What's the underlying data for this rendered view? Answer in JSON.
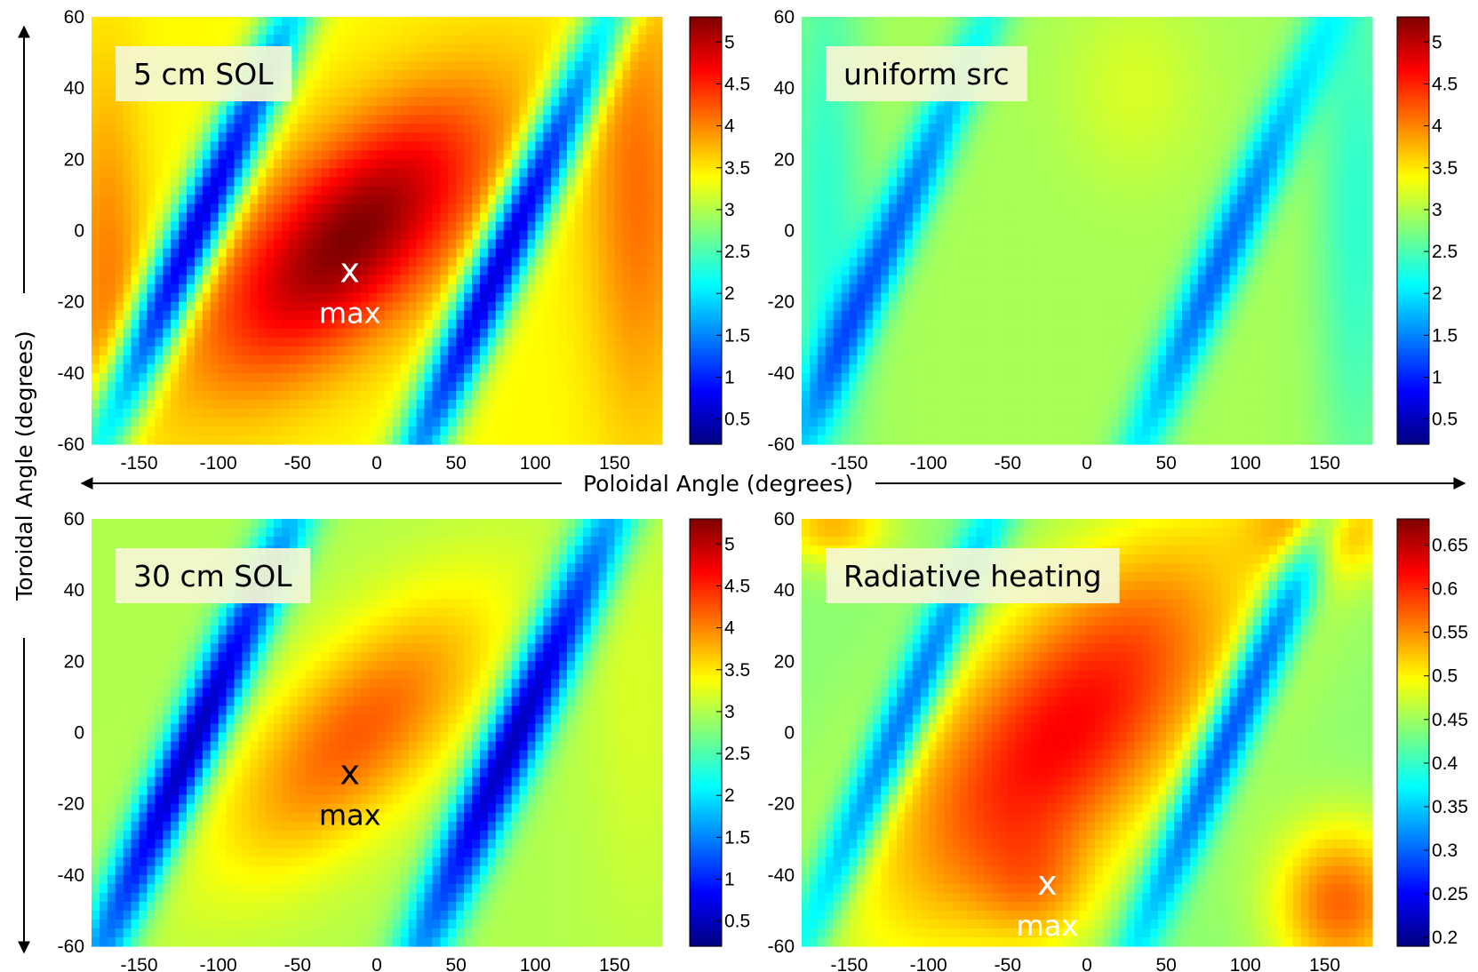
{
  "colors": {
    "jet": [
      "#00007f",
      "#0000ff",
      "#007fff",
      "#00ffff",
      "#7fff7f",
      "#ffff00",
      "#ff7f00",
      "#ff0000",
      "#7f0000"
    ],
    "label_box": "#f4f6d2",
    "marker_light": "#ffffff",
    "marker_dark": "#000000"
  },
  "axes": {
    "xlabel": "Poloidal Angle (degrees)",
    "ylabel": "Toroidal  Angle (degrees)"
  },
  "chart_data": [
    {
      "type": "heatmap",
      "label": "5 cm SOL",
      "x_ticks": [
        "-150",
        "-100",
        "-50",
        "0",
        "50",
        "100",
        "150"
      ],
      "y_ticks": [
        "60",
        "40",
        "20",
        "0",
        "-20",
        "-40",
        "-60"
      ],
      "colorbar_ticks": [
        "5",
        "4.5",
        "4",
        "3.5",
        "3",
        "2.5",
        "2",
        "1.5",
        "1",
        "0.5"
      ],
      "xlim": [
        -180,
        180
      ],
      "ylim": [
        -60,
        60
      ],
      "clim": [
        0.2,
        5.3
      ],
      "marker": {
        "symbol": "x",
        "text": "max",
        "x": -17,
        "y": -12,
        "color": "light"
      },
      "field": {
        "base": 3.4,
        "components": [
          {
            "x": -17,
            "y": -2,
            "amp": 1.9,
            "su": 48,
            "sv": 27,
            "tilt": 0.5
          },
          {
            "x": -116,
            "y": -2,
            "amp": -2.9,
            "su": 13,
            "sv": 52,
            "tilt": 0.33
          },
          {
            "x": 82,
            "y": -5,
            "amp": -2.9,
            "su": 13,
            "sv": 56,
            "tilt": 0.33
          },
          {
            "x": 165,
            "y": 10,
            "amp": 0.7,
            "su": 22,
            "sv": 45,
            "tilt": 0
          },
          {
            "x": -170,
            "y": -12,
            "amp": 0.6,
            "su": 16,
            "sv": 40,
            "tilt": 0
          }
        ]
      }
    },
    {
      "type": "heatmap",
      "label": "uniform src",
      "x_ticks": [
        "-150",
        "-100",
        "-50",
        "0",
        "50",
        "100",
        "150"
      ],
      "y_ticks": [
        "60",
        "40",
        "20",
        "0",
        "-20",
        "-40",
        "-60"
      ],
      "colorbar_ticks": [
        "5",
        "4.5",
        "4",
        "3.5",
        "3",
        "2.5",
        "2",
        "1.5",
        "1",
        "0.5"
      ],
      "xlim": [
        -180,
        180
      ],
      "ylim": [
        -60,
        60
      ],
      "clim": [
        0.2,
        5.3
      ],
      "field": {
        "base": 2.95,
        "components": [
          {
            "x": -125,
            "y": -3,
            "amp": -1.6,
            "su": 12,
            "sv": 48,
            "tilt": 0.33
          },
          {
            "x": 85,
            "y": -8,
            "amp": -1.6,
            "su": 12,
            "sv": 48,
            "tilt": 0.33
          },
          {
            "x": -165,
            "y": 5,
            "amp": -0.6,
            "su": 18,
            "sv": 60,
            "tilt": 0
          },
          {
            "x": 170,
            "y": 5,
            "amp": -0.6,
            "su": 18,
            "sv": 60,
            "tilt": 0
          },
          {
            "x": 30,
            "y": 40,
            "amp": 0.25,
            "su": 30,
            "sv": 18,
            "tilt": 0
          }
        ]
      }
    },
    {
      "type": "heatmap",
      "label": "30 cm SOL",
      "x_ticks": [
        "-150",
        "-100",
        "-50",
        "0",
        "50",
        "100",
        "150"
      ],
      "y_ticks": [
        "60",
        "40",
        "20",
        "0",
        "-20",
        "-40",
        "-60"
      ],
      "colorbar_ticks": [
        "5",
        "4.5",
        "4",
        "3.5",
        "3",
        "2.5",
        "2",
        "1.5",
        "1",
        "0.5"
      ],
      "xlim": [
        -180,
        180
      ],
      "ylim": [
        -60,
        60
      ],
      "clim": [
        0.2,
        5.3
      ],
      "marker": {
        "symbol": "x",
        "text": "max",
        "x": -17,
        "y": -12,
        "color": "dark"
      },
      "field": {
        "base": 3.0,
        "components": [
          {
            "x": -12,
            "y": 0,
            "amp": 1.2,
            "su": 45,
            "sv": 27,
            "tilt": 0.5
          },
          {
            "x": -118,
            "y": -5,
            "amp": -2.6,
            "su": 13,
            "sv": 52,
            "tilt": 0.33
          },
          {
            "x": 88,
            "y": 0,
            "amp": -2.6,
            "su": 14,
            "sv": 54,
            "tilt": 0.33
          },
          {
            "x": 165,
            "y": 10,
            "amp": 0.2,
            "su": 22,
            "sv": 45,
            "tilt": 0
          }
        ]
      }
    },
    {
      "type": "heatmap",
      "label": "Radiative heating",
      "x_ticks": [
        "-150",
        "-100",
        "-50",
        "0",
        "50",
        "100",
        "150"
      ],
      "y_ticks": [
        "60",
        "40",
        "20",
        "0",
        "-20",
        "-40",
        "-60"
      ],
      "colorbar_ticks": [
        "0.65",
        "0.6",
        "0.55",
        "0.5",
        "0.45",
        "0.4",
        "0.35",
        "0.3",
        "0.25",
        "0.2"
      ],
      "xlim": [
        -180,
        180
      ],
      "ylim": [
        -60,
        60
      ],
      "clim": [
        0.19,
        0.68
      ],
      "marker": {
        "symbol": "x",
        "text": "max",
        "x": -25,
        "y": -43,
        "color": "light"
      },
      "field": {
        "base": 0.44,
        "components": [
          {
            "x": -15,
            "y": 0,
            "amp": 0.18,
            "su": 62,
            "sv": 40,
            "tilt": 0.45
          },
          {
            "x": -120,
            "y": 0,
            "amp": -0.17,
            "su": 12,
            "sv": 48,
            "tilt": 0.33
          },
          {
            "x": 95,
            "y": 5,
            "amp": -0.19,
            "su": 12,
            "sv": 50,
            "tilt": 0.33
          },
          {
            "x": 160,
            "y": -48,
            "amp": 0.13,
            "su": 30,
            "sv": 16,
            "tilt": 0
          },
          {
            "x": 150,
            "y": 58,
            "amp": 0.1,
            "su": 30,
            "sv": 10,
            "tilt": 0
          },
          {
            "x": -160,
            "y": 58,
            "amp": 0.09,
            "su": 25,
            "sv": 8,
            "tilt": 0
          },
          {
            "x": -30,
            "y": -45,
            "amp": 0.05,
            "su": 25,
            "sv": 12,
            "tilt": 0
          }
        ]
      }
    }
  ]
}
